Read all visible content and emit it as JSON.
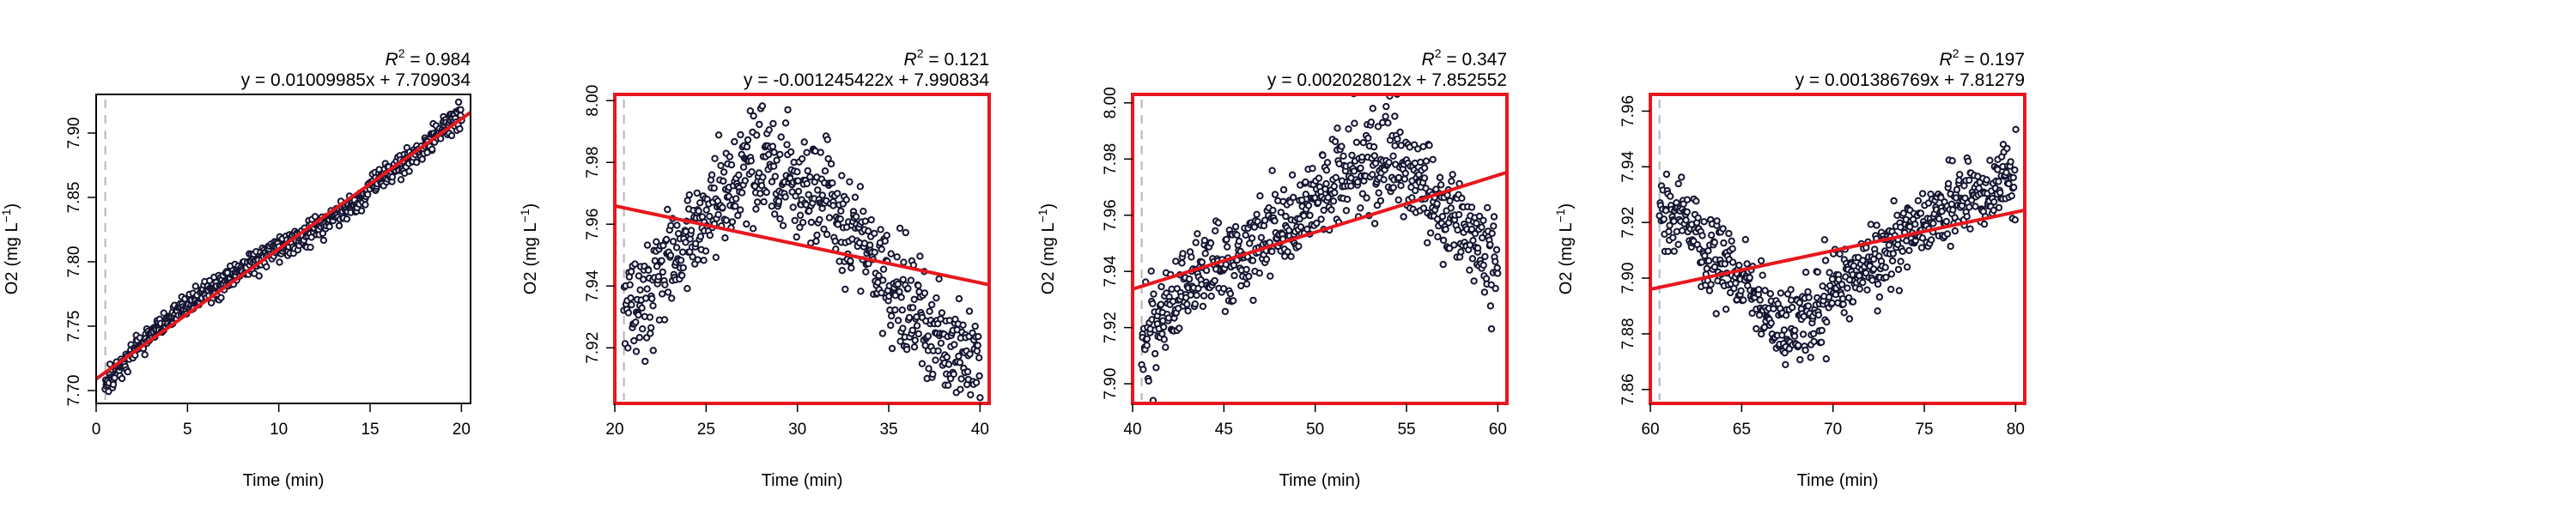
{
  "chart_data": [
    {
      "type": "scatter",
      "xlabel": "Time (min)",
      "ylabel_main": "O2",
      "ylabel_unit_prefix": "(mg L",
      "ylabel_unit_exp": "−1",
      "ylabel_unit_suffix": ")",
      "r2_prefix": "R",
      "r2_exp": "2",
      "r2_text": " = 0.984",
      "equation": "y = 0.01009985x + 7.709034",
      "xlim": [
        0,
        20.5
      ],
      "ylim": [
        7.69,
        7.93
      ],
      "xticks": [
        0,
        5,
        10,
        15,
        20
      ],
      "xtick_labels": [
        "0",
        "5",
        "10",
        "15",
        "20"
      ],
      "yticks": [
        7.7,
        7.75,
        7.8,
        7.85,
        7.9
      ],
      "ytick_labels": [
        "7.70",
        "7.75",
        "7.80",
        "7.85",
        "7.90"
      ],
      "fit": {
        "slope": 0.01009985,
        "intercept": 7.709034
      },
      "vline_x": 0.5,
      "highlight_border": false,
      "trend_x": [
        0.5,
        2,
        4,
        6,
        8,
        10,
        12,
        14,
        16,
        18,
        20
      ],
      "trend_y": [
        7.7,
        7.73,
        7.755,
        7.775,
        7.795,
        7.81,
        7.825,
        7.845,
        7.87,
        7.89,
        7.915
      ],
      "noise_sd": 0.005,
      "point_count": 650
    },
    {
      "type": "scatter",
      "xlabel": "Time (min)",
      "ylabel_main": "O2",
      "ylabel_unit_prefix": "(mg L",
      "ylabel_unit_exp": "−1",
      "ylabel_unit_suffix": ")",
      "r2_prefix": "R",
      "r2_exp": "2",
      "r2_text": " = 0.121",
      "equation": "y = -0.001245422x + 7.990834",
      "xlim": [
        20,
        40.5
      ],
      "ylim": [
        7.902,
        8.002
      ],
      "xticks": [
        20,
        25,
        30,
        35,
        40
      ],
      "xtick_labels": [
        "20",
        "25",
        "30",
        "35",
        "40"
      ],
      "yticks": [
        7.92,
        7.94,
        7.96,
        7.98,
        8.0
      ],
      "ytick_labels": [
        "7.92",
        "7.94",
        "7.96",
        "7.98",
        "8.00"
      ],
      "fit": {
        "slope": -0.001245422,
        "intercept": 7.990834
      },
      "vline_x": 20.5,
      "highlight_border": true,
      "trend_x": [
        20.5,
        22,
        24,
        26,
        28,
        30,
        32,
        34,
        36,
        38,
        40
      ],
      "trend_y": [
        7.93,
        7.94,
        7.955,
        7.97,
        7.978,
        7.975,
        7.965,
        7.95,
        7.935,
        7.922,
        7.915
      ],
      "noise_sd": 0.008,
      "point_count": 650
    },
    {
      "type": "scatter",
      "xlabel": "Time (min)",
      "ylabel_main": "O2",
      "ylabel_unit_prefix": "(mg L",
      "ylabel_unit_exp": "−1",
      "ylabel_unit_suffix": ")",
      "r2_prefix": "R",
      "r2_exp": "2",
      "r2_text": " = 0.347",
      "equation": "y = 0.002028012x + 7.852552",
      "xlim": [
        40,
        60.5
      ],
      "ylim": [
        7.893,
        8.003
      ],
      "xticks": [
        40,
        45,
        50,
        55,
        60
      ],
      "xtick_labels": [
        "40",
        "45",
        "50",
        "55",
        "60"
      ],
      "yticks": [
        7.9,
        7.92,
        7.94,
        7.96,
        7.98,
        8.0
      ],
      "ytick_labels": [
        "7.90",
        "7.92",
        "7.94",
        "7.96",
        "7.98",
        "8.00"
      ],
      "fit": {
        "slope": 0.002028012,
        "intercept": 7.852552
      },
      "vline_x": 40.5,
      "highlight_border": true,
      "trend_x": [
        40.5,
        42,
        44,
        46,
        48,
        50,
        52,
        54,
        55,
        56,
        58,
        60
      ],
      "trend_y": [
        7.91,
        7.93,
        7.94,
        7.947,
        7.955,
        7.965,
        7.975,
        7.98,
        7.978,
        7.97,
        7.955,
        7.94
      ],
      "noise_sd": 0.008,
      "point_count": 650
    },
    {
      "type": "scatter",
      "xlabel": "Time (min)",
      "ylabel_main": "O2",
      "ylabel_unit_prefix": "(mg L",
      "ylabel_unit_exp": "−1",
      "ylabel_unit_suffix": ")",
      "r2_prefix": "R",
      "r2_exp": "2",
      "r2_text": " = 0.197",
      "equation": "y = 0.001386769x + 7.81279",
      "xlim": [
        60,
        80.5
      ],
      "ylim": [
        7.855,
        7.966
      ],
      "xticks": [
        60,
        65,
        70,
        75,
        80
      ],
      "xtick_labels": [
        "60",
        "65",
        "70",
        "75",
        "80"
      ],
      "yticks": [
        7.86,
        7.88,
        7.9,
        7.92,
        7.94,
        7.96
      ],
      "ytick_labels": [
        "7.86",
        "7.88",
        "7.90",
        "7.92",
        "7.94",
        "7.96"
      ],
      "fit": {
        "slope": 0.001386769,
        "intercept": 7.81279
      },
      "vline_x": 60.5,
      "highlight_border": true,
      "trend_x": [
        60.5,
        62,
        64,
        66,
        67.5,
        69,
        71,
        73,
        75,
        77,
        79,
        80
      ],
      "trend_y": [
        7.925,
        7.92,
        7.905,
        7.893,
        7.88,
        7.888,
        7.9,
        7.91,
        7.92,
        7.928,
        7.935,
        7.935
      ],
      "noise_sd": 0.007,
      "point_count": 650
    }
  ],
  "colors": {
    "point_stroke": "#151532",
    "fit_line": "#e8171e",
    "highlight_border": "#e8171e",
    "vline": "#b5b5b5",
    "axis": "#000000"
  }
}
